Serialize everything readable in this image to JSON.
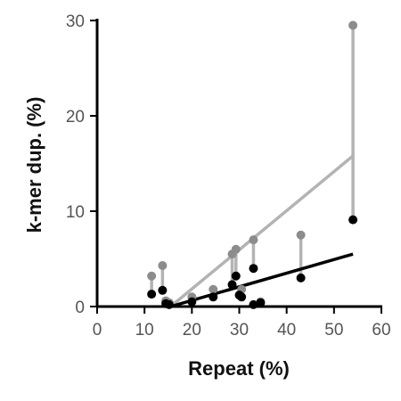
{
  "chart_data": {
    "type": "scatter",
    "xlabel": "Repeat (%)",
    "ylabel": "k-mer dup. (%)",
    "xlim": [
      0,
      60
    ],
    "ylim": [
      0,
      30
    ],
    "xticks": [
      0,
      10,
      20,
      30,
      40,
      50,
      60
    ],
    "yticks": [
      0,
      10,
      20,
      30
    ],
    "grid": false,
    "legend": "none",
    "colors": {
      "gray_series": "#8c8c8c",
      "black_series": "#000000",
      "connector": "#b3b3b3",
      "gray_fit": "#b3b3b3",
      "black_fit": "#000000",
      "axis": "#000000"
    },
    "series": [
      {
        "points": [
          {
            "x": 11.5,
            "y": 3.2
          },
          {
            "x": 13.8,
            "y": 4.3
          },
          {
            "x": 14.5,
            "y": 0.6
          },
          {
            "x": 15.2,
            "y": 0.4
          },
          {
            "x": 20.0,
            "y": 1.0
          },
          {
            "x": 24.5,
            "y": 1.8
          },
          {
            "x": 28.5,
            "y": 5.5
          },
          {
            "x": 29.3,
            "y": 6.0
          },
          {
            "x": 30.5,
            "y": 1.8
          },
          {
            "x": 33.0,
            "y": 7.0
          },
          {
            "x": 34.5,
            "y": 0.5
          },
          {
            "x": 43.0,
            "y": 7.5
          },
          {
            "x": 54.0,
            "y": 29.5
          }
        ]
      },
      {
        "points": [
          {
            "x": 11.5,
            "y": 1.3
          },
          {
            "x": 13.8,
            "y": 1.7
          },
          {
            "x": 14.5,
            "y": 0.3
          },
          {
            "x": 15.2,
            "y": 0.2
          },
          {
            "x": 20.0,
            "y": 0.5
          },
          {
            "x": 24.5,
            "y": 1.0
          },
          {
            "x": 28.5,
            "y": 2.3
          },
          {
            "x": 29.3,
            "y": 3.2
          },
          {
            "x": 30.5,
            "y": 1.0
          },
          {
            "x": 33.0,
            "y": 4.0
          },
          {
            "x": 34.5,
            "y": 0.4
          },
          {
            "x": 43.0,
            "y": 3.0
          },
          {
            "x": 54.0,
            "y": 9.1
          }
        ]
      }
    ],
    "fits": [
      {
        "x": [
          15.5,
          54.0
        ],
        "y": [
          0.0,
          15.8
        ]
      },
      {
        "x": [
          15.5,
          54.0
        ],
        "y": [
          0.0,
          5.5
        ]
      }
    ],
    "extra_black_points": [
      {
        "x": 30.0,
        "y": 1.2
      },
      {
        "x": 33.0,
        "y": 0.2
      }
    ]
  }
}
